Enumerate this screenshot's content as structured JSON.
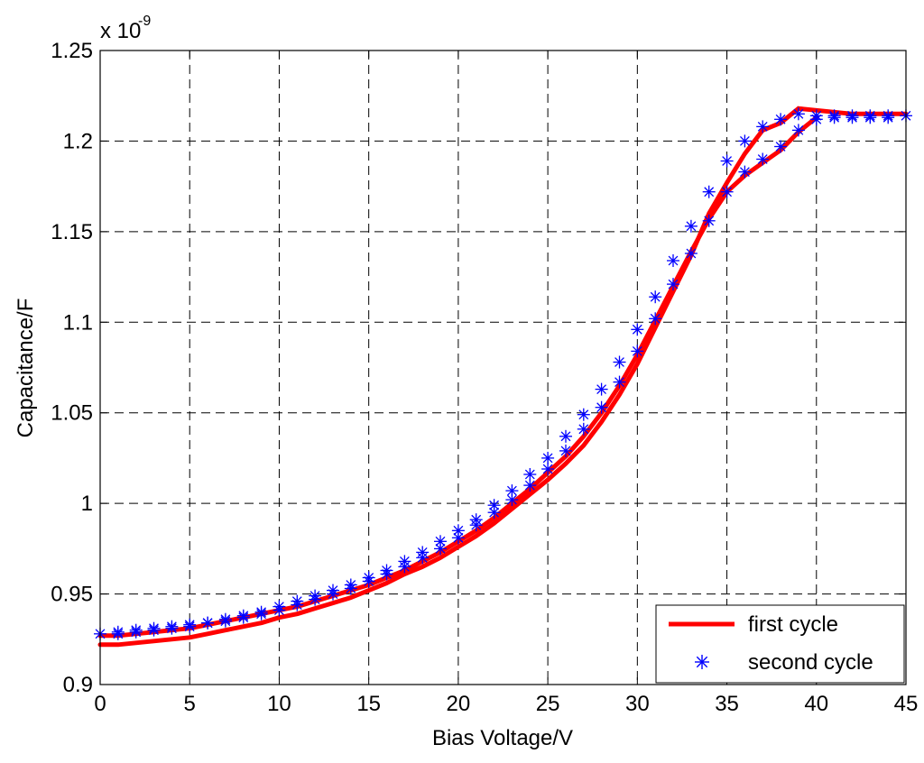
{
  "chart_data": {
    "type": "line",
    "xlabel": "Bias Voltage/V",
    "ylabel": "Capacitance/F",
    "exponent_base": "x 10",
    "exponent_power": "-9",
    "xlim": [
      0,
      45
    ],
    "ylim": [
      0.9,
      1.25
    ],
    "x_ticks": [
      "0",
      "5",
      "10",
      "15",
      "20",
      "25",
      "30",
      "35",
      "40",
      "45"
    ],
    "y_ticks": [
      "0.9",
      "0.95",
      "1",
      "1.05",
      "1.1",
      "1.15",
      "1.2",
      "1.25"
    ],
    "grid": true,
    "legend_position": "bottom-right",
    "colors": {
      "first": "#ff0000",
      "second": "#0000ff"
    },
    "series": [
      {
        "name": "first cycle",
        "style": "line",
        "segments": [
          {
            "x": [
              0,
              1,
              2,
              3,
              4,
              5,
              6,
              7,
              8,
              9,
              10,
              11,
              12,
              13,
              14,
              15,
              16,
              17,
              18,
              19,
              20,
              21,
              22,
              23,
              24,
              25,
              26,
              27,
              28,
              29,
              30,
              31,
              32,
              33,
              34,
              35,
              36,
              37,
              38,
              39
            ],
            "y": [
              0.922,
              0.922,
              0.923,
              0.924,
              0.925,
              0.926,
              0.928,
              0.93,
              0.932,
              0.934,
              0.937,
              0.939,
              0.942,
              0.945,
              0.948,
              0.952,
              0.956,
              0.961,
              0.965,
              0.97,
              0.976,
              0.982,
              0.989,
              0.997,
              1.005,
              1.013,
              1.022,
              1.032,
              1.045,
              1.06,
              1.077,
              1.097,
              1.117,
              1.137,
              1.16,
              1.177,
              1.193,
              1.206,
              1.21,
              1.218
            ]
          },
          {
            "x": [
              39,
              40,
              41,
              42,
              43,
              44,
              45
            ],
            "y": [
              1.218,
              1.217,
              1.216,
              1.215,
              1.215,
              1.215,
              1.215
            ]
          },
          {
            "x": [
              0,
              1,
              2,
              3,
              4,
              5,
              6,
              7,
              8,
              9,
              10,
              11,
              12,
              13,
              14,
              15,
              16,
              17,
              18,
              19,
              20,
              21,
              22,
              23,
              24,
              25,
              26,
              27,
              28,
              29,
              30,
              31,
              32,
              33,
              34,
              35,
              36,
              37,
              38,
              39,
              40
            ],
            "y": [
              0.927,
              0.927,
              0.928,
              0.929,
              0.93,
              0.931,
              0.933,
              0.935,
              0.937,
              0.939,
              0.941,
              0.943,
              0.946,
              0.949,
              0.952,
              0.955,
              0.959,
              0.963,
              0.968,
              0.973,
              0.979,
              0.985,
              0.992,
              1.0,
              1.008,
              1.017,
              1.026,
              1.037,
              1.05,
              1.065,
              1.082,
              1.101,
              1.12,
              1.139,
              1.157,
              1.172,
              1.181,
              1.188,
              1.195,
              1.205,
              1.213
            ]
          }
        ]
      },
      {
        "name": "second cycle",
        "style": "marker",
        "marker": "*",
        "x": [
          0,
          1,
          2,
          3,
          4,
          5,
          6,
          7,
          8,
          9,
          10,
          11,
          12,
          13,
          14,
          15,
          16,
          17,
          18,
          19,
          20,
          21,
          22,
          23,
          24,
          25,
          26,
          27,
          28,
          29,
          30,
          31,
          32,
          33,
          34,
          35,
          36,
          37,
          38,
          39,
          40,
          41,
          42,
          43,
          44,
          45,
          1,
          2,
          3,
          4,
          5,
          6,
          7,
          8,
          9,
          10,
          11,
          12,
          13,
          14,
          15,
          16,
          17,
          18,
          19,
          20,
          21,
          22,
          23,
          24,
          25,
          26,
          27,
          28,
          29,
          30,
          31,
          32,
          33,
          34,
          35,
          36,
          37,
          38,
          39,
          40,
          41,
          42,
          43,
          44
        ],
        "y": [
          0.928,
          0.929,
          0.93,
          0.931,
          0.932,
          0.933,
          0.934,
          0.936,
          0.938,
          0.94,
          0.943,
          0.946,
          0.949,
          0.952,
          0.955,
          0.959,
          0.963,
          0.968,
          0.973,
          0.979,
          0.985,
          0.991,
          0.999,
          1.007,
          1.016,
          1.025,
          1.037,
          1.049,
          1.063,
          1.078,
          1.096,
          1.114,
          1.134,
          1.153,
          1.172,
          1.189,
          1.2,
          1.208,
          1.212,
          1.215,
          1.214,
          1.214,
          1.214,
          1.214,
          1.214,
          1.214,
          0.928,
          0.929,
          0.93,
          0.931,
          0.932,
          0.934,
          0.935,
          0.937,
          0.939,
          0.941,
          0.944,
          0.947,
          0.95,
          0.953,
          0.957,
          0.961,
          0.965,
          0.97,
          0.975,
          0.981,
          0.988,
          0.995,
          1.002,
          1.01,
          1.019,
          1.029,
          1.041,
          1.053,
          1.067,
          1.084,
          1.102,
          1.121,
          1.138,
          1.156,
          1.172,
          1.183,
          1.19,
          1.197,
          1.206,
          1.212,
          1.213,
          1.213,
          1.213,
          1.213
        ]
      }
    ]
  }
}
